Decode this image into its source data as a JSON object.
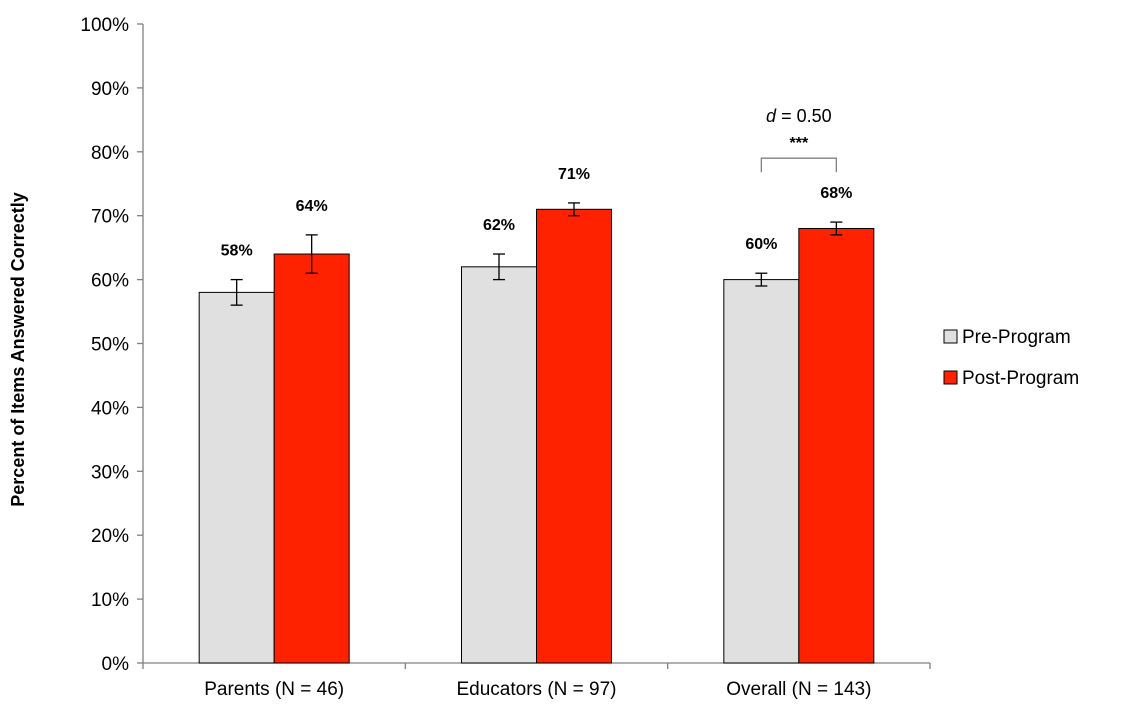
{
  "chart_data": {
    "type": "bar",
    "title": "",
    "xlabel": "",
    "ylabel": "Percent of Items Answered Correctly",
    "categories": [
      "Parents (N = 46)",
      "Educators (N = 97)",
      "Overall (N = 143)"
    ],
    "series": [
      {
        "name": "Pre-Program",
        "color": "#e0e0e0",
        "values": [
          58,
          62,
          60
        ],
        "labels": [
          "58%",
          "62%",
          "60%"
        ],
        "error": [
          2,
          2,
          1
        ]
      },
      {
        "name": "Post-Program",
        "color": "#ff2200",
        "values": [
          64,
          71,
          68
        ],
        "labels": [
          "64%",
          "71%",
          "68%"
        ],
        "error": [
          3,
          1,
          1
        ]
      }
    ],
    "ylim": [
      0,
      100
    ],
    "yticks": [
      0,
      10,
      20,
      30,
      40,
      50,
      60,
      70,
      80,
      90,
      100
    ],
    "ytick_labels": [
      "0%",
      "10%",
      "20%",
      "30%",
      "40%",
      "50%",
      "60%",
      "70%",
      "80%",
      "90%",
      "100%"
    ],
    "grid": false,
    "legend_position": "right",
    "annotation": {
      "category_index": 2,
      "effect_prefix": "d",
      "effect_value": " = 0.50",
      "stars": "***",
      "bracket_value": 79
    }
  }
}
